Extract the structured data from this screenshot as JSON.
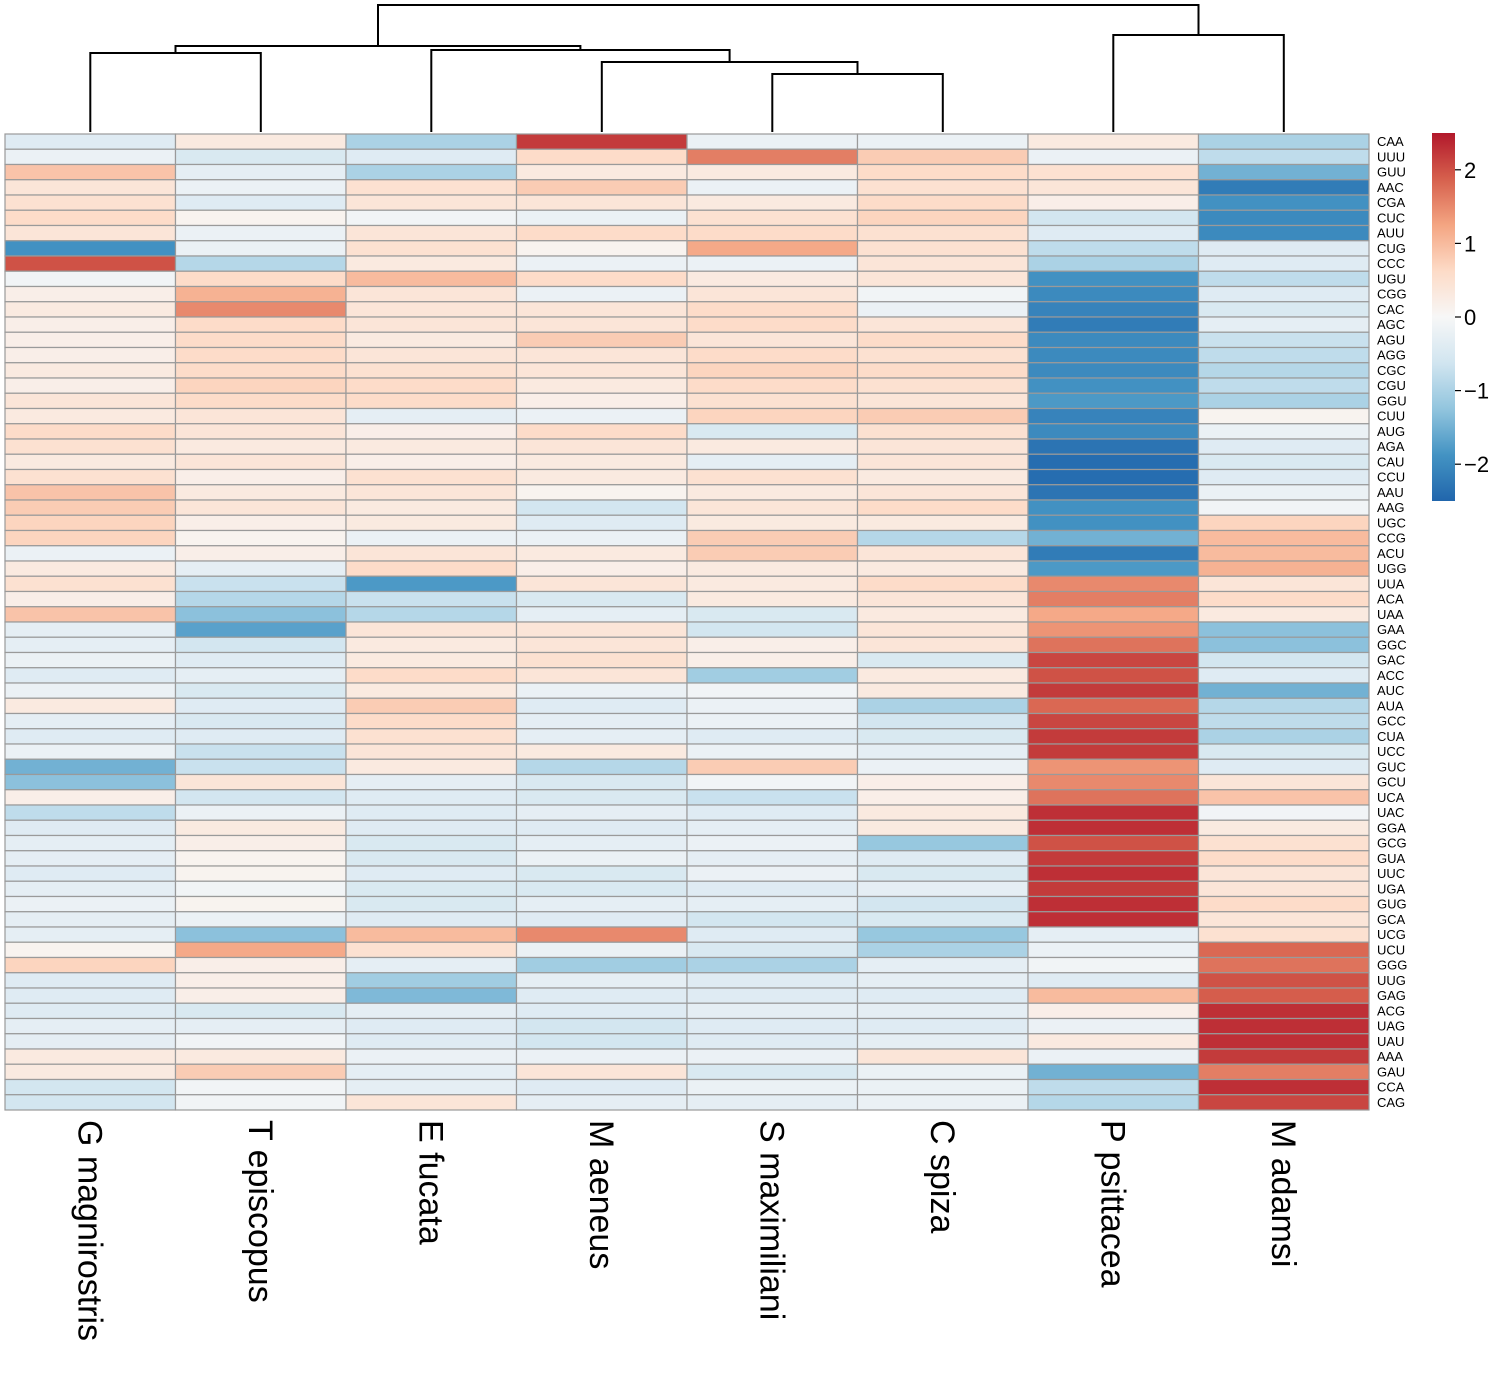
{
  "chart_data": {
    "type": "heatmap",
    "title": "",
    "columns": [
      "G magnirostris",
      "T episcopus",
      "E fucata",
      "M aeneus",
      "S maximiliani",
      "C spiza",
      "P psittacea",
      "M adamsi"
    ],
    "rows": [
      "CAA",
      "UUU",
      "GUU",
      "AAC",
      "CGA",
      "CUC",
      "AUU",
      "CUG",
      "CCC",
      "UGU",
      "CGG",
      "CAC",
      "AGC",
      "AGU",
      "AGG",
      "CGC",
      "CGU",
      "GGU",
      "CUU",
      "AUG",
      "AGA",
      "CAU",
      "CCU",
      "AAU",
      "AAG",
      "UGC",
      "CCG",
      "ACU",
      "UGG",
      "UUA",
      "ACA",
      "UAA",
      "GAA",
      "GGC",
      "GAC",
      "ACC",
      "AUC",
      "AUA",
      "GCC",
      "CUA",
      "UCC",
      "GUC",
      "GCU",
      "UCA",
      "UAC",
      "GGA",
      "GCG",
      "GUA",
      "UUC",
      "UGA",
      "GUG",
      "GCA",
      "UCG",
      "UCU",
      "GGG",
      "UUG",
      "GAG",
      "ACG",
      "UAG",
      "UAU",
      "AAA",
      "GAU",
      "CCA",
      "CAG"
    ],
    "values": [
      [
        -0.4,
        0.3,
        -1.0,
        2.2,
        -0.2,
        -0.2,
        0.3,
        -1.0
      ],
      [
        -0.2,
        -0.5,
        -0.4,
        0.6,
        1.6,
        0.8,
        -0.2,
        -0.8
      ],
      [
        0.9,
        -0.3,
        -1.0,
        0.3,
        0.3,
        0.6,
        0.5,
        -1.5
      ],
      [
        0.4,
        -0.2,
        0.5,
        0.8,
        -0.2,
        0.5,
        0.4,
        -2.2
      ],
      [
        0.5,
        -0.4,
        0.4,
        0.4,
        0.3,
        0.6,
        0.2,
        -1.9
      ],
      [
        0.6,
        0.1,
        -0.1,
        -0.2,
        0.5,
        0.7,
        -0.6,
        -2.0
      ],
      [
        0.4,
        -0.2,
        0.4,
        0.6,
        0.6,
        0.5,
        -0.4,
        -2.0
      ],
      [
        -1.9,
        -0.2,
        0.5,
        0.1,
        1.2,
        0.5,
        -0.8,
        -0.4
      ],
      [
        2.0,
        -0.9,
        0.3,
        -0.2,
        -0.2,
        0.4,
        -1.0,
        -0.4
      ],
      [
        -0.1,
        0.6,
        1.0,
        0.6,
        0.3,
        0.4,
        -1.9,
        -0.8
      ],
      [
        0.2,
        1.1,
        0.4,
        -0.2,
        0.4,
        -0.1,
        -2.0,
        -0.4
      ],
      [
        0.3,
        1.5,
        0.4,
        0.4,
        0.6,
        -0.2,
        -2.1,
        -0.5
      ],
      [
        0.2,
        0.6,
        0.4,
        0.4,
        0.6,
        0.4,
        -2.2,
        -0.3
      ],
      [
        0.2,
        0.6,
        0.3,
        0.8,
        0.4,
        0.6,
        -2.0,
        -0.7
      ],
      [
        0.2,
        0.6,
        0.4,
        0.4,
        0.6,
        0.5,
        -2.0,
        -0.8
      ],
      [
        0.3,
        0.6,
        0.5,
        0.4,
        0.7,
        0.6,
        -2.0,
        -0.9
      ],
      [
        0.2,
        0.7,
        0.6,
        0.3,
        0.6,
        0.5,
        -1.9,
        -0.8
      ],
      [
        0.4,
        0.6,
        0.6,
        0.2,
        0.5,
        0.4,
        -1.8,
        -1.0
      ],
      [
        0.3,
        0.4,
        -0.3,
        -0.2,
        0.7,
        0.8,
        -2.1,
        0.1
      ],
      [
        0.6,
        0.4,
        0.2,
        0.6,
        -0.5,
        0.5,
        -2.0,
        -0.2
      ],
      [
        0.5,
        0.3,
        0.3,
        0.4,
        0.3,
        0.4,
        -2.3,
        -0.4
      ],
      [
        0.3,
        0.4,
        0.2,
        0.3,
        -0.3,
        0.4,
        -2.4,
        -0.5
      ],
      [
        0.5,
        0.2,
        0.5,
        0.3,
        0.5,
        0.3,
        -2.4,
        -0.4
      ],
      [
        0.9,
        0.3,
        0.4,
        0.1,
        0.3,
        0.4,
        -2.3,
        -0.2
      ],
      [
        0.8,
        0.4,
        0.3,
        -0.6,
        0.4,
        0.6,
        -1.9,
        -0.1
      ],
      [
        0.7,
        0.2,
        0.3,
        -0.4,
        0.3,
        0.3,
        -1.9,
        0.7
      ],
      [
        0.7,
        0.1,
        -0.2,
        -0.2,
        0.8,
        -0.9,
        -1.5,
        1.0
      ],
      [
        -0.2,
        0.2,
        0.4,
        0.3,
        0.8,
        0.4,
        -2.2,
        1.0
      ],
      [
        0.3,
        -0.3,
        0.6,
        0.2,
        0.3,
        0.3,
        -1.8,
        1.1
      ],
      [
        0.5,
        -0.7,
        -1.8,
        0.4,
        0.3,
        0.6,
        1.5,
        0.4
      ],
      [
        0.2,
        -0.9,
        -0.7,
        -0.5,
        0.3,
        0.4,
        1.6,
        0.6
      ],
      [
        0.9,
        -1.3,
        -0.9,
        -0.3,
        -0.5,
        0.3,
        1.2,
        0.3
      ],
      [
        -0.3,
        -1.7,
        0.4,
        0.4,
        -0.6,
        0.4,
        1.4,
        -1.3
      ],
      [
        -0.3,
        -0.6,
        0.3,
        0.4,
        0.2,
        0.4,
        1.7,
        -1.3
      ],
      [
        -0.2,
        -0.4,
        0.3,
        0.5,
        0.2,
        -0.5,
        2.1,
        -0.6
      ],
      [
        -0.4,
        -0.3,
        0.6,
        0.4,
        -1.1,
        0.3,
        2.0,
        -0.4
      ],
      [
        -0.2,
        -0.5,
        0.3,
        -0.2,
        -0.1,
        0.3,
        2.2,
        -1.5
      ],
      [
        0.3,
        -0.4,
        0.8,
        -0.4,
        -0.2,
        -1.0,
        1.8,
        -0.9
      ],
      [
        -0.3,
        -0.5,
        0.6,
        -0.3,
        -0.2,
        -0.6,
        2.1,
        -0.8
      ],
      [
        -0.4,
        -0.4,
        0.5,
        -0.3,
        -0.4,
        -0.5,
        2.2,
        -1.0
      ],
      [
        -0.2,
        -0.7,
        0.4,
        0.3,
        -0.2,
        -0.3,
        2.2,
        -0.5
      ],
      [
        -1.5,
        -0.7,
        0.3,
        -0.9,
        0.8,
        -0.2,
        1.4,
        -0.4
      ],
      [
        -1.3,
        0.4,
        -0.3,
        -0.5,
        -0.1,
        0.2,
        1.5,
        0.4
      ],
      [
        0.2,
        -0.6,
        -0.4,
        -0.5,
        -0.7,
        0.2,
        1.7,
        0.9
      ],
      [
        -0.8,
        -0.2,
        -0.4,
        -0.3,
        -0.4,
        0.3,
        2.3,
        -0.1
      ],
      [
        -0.4,
        0.3,
        -0.4,
        -0.4,
        -0.3,
        0.3,
        2.3,
        0.3
      ],
      [
        -0.3,
        0.2,
        -0.5,
        -0.3,
        -0.2,
        -1.2,
        2.0,
        0.5
      ],
      [
        -0.3,
        0.1,
        -0.5,
        -0.2,
        -0.3,
        -0.4,
        2.2,
        0.6
      ],
      [
        -0.4,
        0.1,
        -0.4,
        -0.5,
        -0.2,
        -0.5,
        2.3,
        0.4
      ],
      [
        -0.3,
        -0.1,
        -0.5,
        -0.5,
        -0.4,
        -0.3,
        2.2,
        0.4
      ],
      [
        -0.2,
        0.1,
        -0.5,
        -0.3,
        -0.3,
        -0.6,
        2.3,
        0.6
      ],
      [
        -0.3,
        -0.2,
        -0.4,
        -0.4,
        -0.6,
        -0.5,
        2.3,
        0.4
      ],
      [
        -0.3,
        -1.3,
        1.0,
        1.5,
        -0.4,
        -1.2,
        -0.3,
        0.5
      ],
      [
        0.1,
        1.2,
        0.5,
        -0.2,
        -0.5,
        -1.0,
        -0.2,
        1.8
      ],
      [
        0.7,
        0.2,
        -0.3,
        -1.1,
        -1.0,
        -0.3,
        -0.1,
        1.7
      ],
      [
        -0.4,
        0.2,
        -1.1,
        -0.3,
        -0.4,
        -0.3,
        -0.4,
        2.0
      ],
      [
        -0.4,
        0.2,
        -1.4,
        -0.4,
        -0.4,
        -0.4,
        1.0,
        1.9
      ],
      [
        -0.4,
        -0.5,
        -0.3,
        -0.4,
        -0.3,
        -0.3,
        0.2,
        2.3
      ],
      [
        -0.3,
        -0.3,
        -0.4,
        -0.6,
        -0.4,
        -0.4,
        -0.2,
        2.3
      ],
      [
        -0.3,
        -0.1,
        -0.4,
        -0.6,
        -0.4,
        -0.3,
        0.3,
        2.3
      ],
      [
        0.3,
        0.3,
        -0.2,
        -0.2,
        -0.2,
        0.4,
        -0.2,
        2.2
      ],
      [
        0.3,
        0.8,
        -0.3,
        0.4,
        -0.5,
        -0.2,
        -1.5,
        1.6
      ],
      [
        -0.6,
        -0.1,
        -0.3,
        -0.4,
        -0.2,
        -0.2,
        -0.8,
        2.3
      ],
      [
        -0.6,
        -0.1,
        0.4,
        -0.3,
        -0.3,
        -0.2,
        -0.9,
        2.1
      ]
    ],
    "color_scale": {
      "min": -2.5,
      "max": 2.5,
      "low": "#2166ac",
      "mid": "#f7f7f7",
      "high": "#b2182b",
      "stops": [
        "#2166ac",
        "#4393c3",
        "#92c5de",
        "#d1e5f0",
        "#f7f7f7",
        "#fddbc7",
        "#f4a582",
        "#d6604d",
        "#b2182b"
      ],
      "ticks": [
        2,
        1,
        0,
        -1,
        -2
      ],
      "tick_labels": [
        "2",
        "1",
        "0",
        "−1",
        "−2"
      ]
    },
    "column_dendrogram_order": "((((G magnirostris, T episcopus), (E fucata, (M aeneus, (S maximiliani, C spiza))))), (P psittacea, M adamsi))"
  },
  "colors": {
    "cell_border": "#9a9a9a",
    "dendrogram": "#000000"
  }
}
